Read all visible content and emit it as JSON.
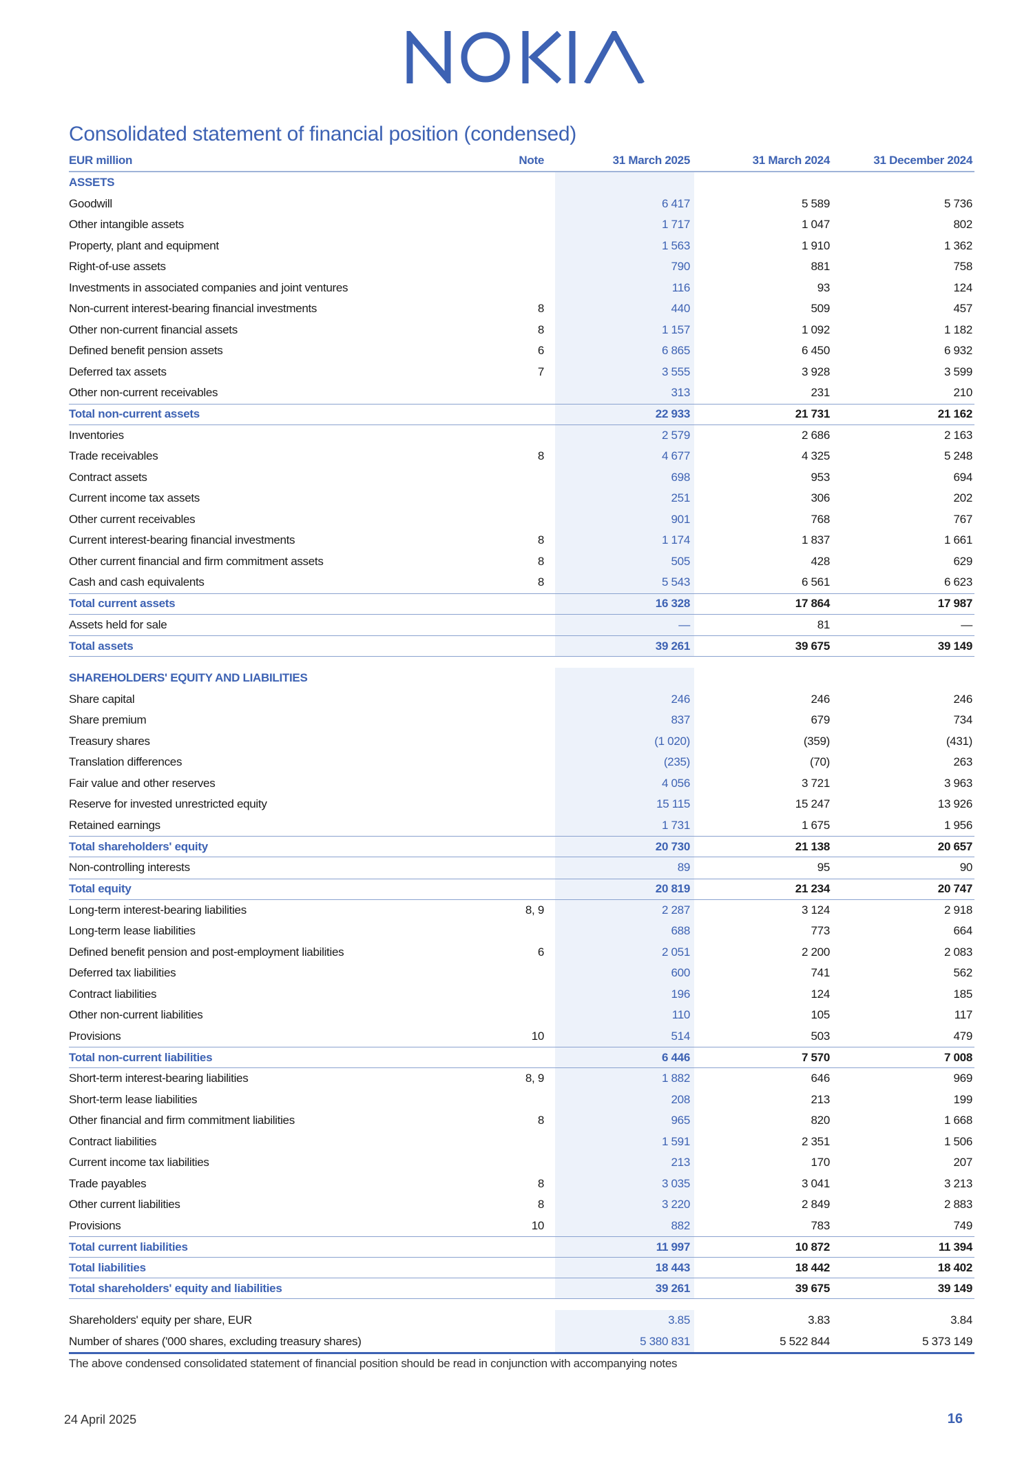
{
  "logo_text": "NOKIA",
  "brand_color": "#3d62b3",
  "title": "Consolidated statement of financial position (condensed)",
  "header": {
    "label": "EUR million",
    "note": "Note",
    "col1": "31 March 2025",
    "col2": "31 March 2024",
    "col3": "31 December 2024"
  },
  "rows": [
    {
      "type": "section",
      "label": "ASSETS",
      "note": "",
      "v1": "",
      "v2": "",
      "v3": ""
    },
    {
      "type": "item",
      "label": "Goodwill",
      "note": "",
      "v1": "6 417",
      "v2": "5 589",
      "v3": "5 736"
    },
    {
      "type": "item",
      "label": "Other intangible assets",
      "note": "",
      "v1": "1 717",
      "v2": "1 047",
      "v3": "802"
    },
    {
      "type": "item",
      "label": "Property, plant and equipment",
      "note": "",
      "v1": "1 563",
      "v2": "1 910",
      "v3": "1 362"
    },
    {
      "type": "item",
      "label": "Right-of-use assets",
      "note": "",
      "v1": "790",
      "v2": "881",
      "v3": "758"
    },
    {
      "type": "item",
      "label": "Investments in associated companies and joint ventures",
      "note": "",
      "v1": "116",
      "v2": "93",
      "v3": "124"
    },
    {
      "type": "item",
      "label": "Non-current interest-bearing financial investments",
      "note": "8",
      "v1": "440",
      "v2": "509",
      "v3": "457"
    },
    {
      "type": "item",
      "label": "Other non-current financial assets",
      "note": "8",
      "v1": "1 157",
      "v2": "1 092",
      "v3": "1 182"
    },
    {
      "type": "item",
      "label": "Defined benefit pension assets",
      "note": "6",
      "v1": "6 865",
      "v2": "6 450",
      "v3": "6 932"
    },
    {
      "type": "item",
      "label": "Deferred tax assets",
      "note": "7",
      "v1": "3 555",
      "v2": "3 928",
      "v3": "3 599"
    },
    {
      "type": "item",
      "label": "Other non-current receivables",
      "note": "",
      "v1": "313",
      "v2": "231",
      "v3": "210"
    },
    {
      "type": "total",
      "label": "Total non-current assets",
      "note": "",
      "v1": "22 933",
      "v2": "21 731",
      "v3": "21 162"
    },
    {
      "type": "item",
      "label": "Inventories",
      "note": "",
      "v1": "2 579",
      "v2": "2 686",
      "v3": "2 163"
    },
    {
      "type": "item",
      "label": "Trade receivables",
      "note": "8",
      "v1": "4 677",
      "v2": "4 325",
      "v3": "5 248"
    },
    {
      "type": "item",
      "label": "Contract assets",
      "note": "",
      "v1": "698",
      "v2": "953",
      "v3": "694"
    },
    {
      "type": "item",
      "label": "Current income tax assets",
      "note": "",
      "v1": "251",
      "v2": "306",
      "v3": "202"
    },
    {
      "type": "item",
      "label": "Other current receivables",
      "note": "",
      "v1": "901",
      "v2": "768",
      "v3": "767"
    },
    {
      "type": "item",
      "label": "Current interest-bearing financial investments",
      "note": "8",
      "v1": "1 174",
      "v2": "1 837",
      "v3": "1 661"
    },
    {
      "type": "item",
      "label": "Other current financial and firm commitment assets",
      "note": "8",
      "v1": "505",
      "v2": "428",
      "v3": "629"
    },
    {
      "type": "item",
      "label": "Cash and cash equivalents",
      "note": "8",
      "v1": "5 543",
      "v2": "6 561",
      "v3": "6 623"
    },
    {
      "type": "total",
      "label": "Total current assets",
      "note": "",
      "v1": "16 328",
      "v2": "17 864",
      "v3": "17 987"
    },
    {
      "type": "item",
      "label": "Assets held for sale",
      "note": "",
      "v1": "—",
      "v2": "81",
      "v3": "—"
    },
    {
      "type": "total",
      "label": "Total assets",
      "note": "",
      "v1": "39 261",
      "v2": "39 675",
      "v3": "39 149"
    },
    {
      "type": "spacer",
      "label": "",
      "note": "",
      "v1": "",
      "v2": "",
      "v3": ""
    },
    {
      "type": "section",
      "label": "SHAREHOLDERS' EQUITY AND LIABILITIES",
      "note": "",
      "v1": "",
      "v2": "",
      "v3": ""
    },
    {
      "type": "item",
      "label": "Share capital",
      "note": "",
      "v1": "246",
      "v2": "246",
      "v3": "246"
    },
    {
      "type": "item",
      "label": "Share premium",
      "note": "",
      "v1": "837",
      "v2": "679",
      "v3": "734"
    },
    {
      "type": "item",
      "label": "Treasury shares",
      "note": "",
      "v1": "(1 020)",
      "v2": "(359)",
      "v3": "(431)"
    },
    {
      "type": "item",
      "label": "Translation differences",
      "note": "",
      "v1": "(235)",
      "v2": "(70)",
      "v3": "263"
    },
    {
      "type": "item",
      "label": "Fair value and other reserves",
      "note": "",
      "v1": "4 056",
      "v2": "3 721",
      "v3": "3 963"
    },
    {
      "type": "item",
      "label": "Reserve for invested unrestricted equity",
      "note": "",
      "v1": "15 115",
      "v2": "15 247",
      "v3": "13 926"
    },
    {
      "type": "item",
      "label": "Retained earnings",
      "note": "",
      "v1": "1 731",
      "v2": "1 675",
      "v3": "1 956"
    },
    {
      "type": "total",
      "label": "Total shareholders' equity",
      "note": "",
      "v1": "20 730",
      "v2": "21 138",
      "v3": "20 657"
    },
    {
      "type": "item",
      "label": "Non-controlling interests",
      "note": "",
      "v1": "89",
      "v2": "95",
      "v3": "90"
    },
    {
      "type": "total",
      "label": "Total equity",
      "note": "",
      "v1": "20 819",
      "v2": "21 234",
      "v3": "20 747"
    },
    {
      "type": "item",
      "label": "Long-term interest-bearing liabilities",
      "note": "8, 9",
      "v1": "2 287",
      "v2": "3 124",
      "v3": "2 918"
    },
    {
      "type": "item",
      "label": "Long-term lease liabilities",
      "note": "",
      "v1": "688",
      "v2": "773",
      "v3": "664"
    },
    {
      "type": "item",
      "label": "Defined benefit pension and post-employment liabilities",
      "note": "6",
      "v1": "2 051",
      "v2": "2 200",
      "v3": "2 083"
    },
    {
      "type": "item",
      "label": "Deferred tax liabilities",
      "note": "",
      "v1": "600",
      "v2": "741",
      "v3": "562"
    },
    {
      "type": "item",
      "label": "Contract liabilities",
      "note": "",
      "v1": "196",
      "v2": "124",
      "v3": "185"
    },
    {
      "type": "item",
      "label": "Other non-current liabilities",
      "note": "",
      "v1": "110",
      "v2": "105",
      "v3": "117"
    },
    {
      "type": "item",
      "label": "Provisions",
      "note": "10",
      "v1": "514",
      "v2": "503",
      "v3": "479"
    },
    {
      "type": "total",
      "label": "Total non-current liabilities",
      "note": "",
      "v1": "6 446",
      "v2": "7 570",
      "v3": "7 008"
    },
    {
      "type": "item",
      "label": "Short-term interest-bearing liabilities",
      "note": "8, 9",
      "v1": "1 882",
      "v2": "646",
      "v3": "969"
    },
    {
      "type": "item",
      "label": "Short-term lease liabilities",
      "note": "",
      "v1": "208",
      "v2": "213",
      "v3": "199"
    },
    {
      "type": "item",
      "label": "Other financial and firm commitment liabilities",
      "note": "8",
      "v1": "965",
      "v2": "820",
      "v3": "1 668"
    },
    {
      "type": "item",
      "label": "Contract liabilities",
      "note": "",
      "v1": "1 591",
      "v2": "2 351",
      "v3": "1 506"
    },
    {
      "type": "item",
      "label": "Current income tax liabilities",
      "note": "",
      "v1": "213",
      "v2": "170",
      "v3": "207"
    },
    {
      "type": "item",
      "label": "Trade payables",
      "note": "8",
      "v1": "3 035",
      "v2": "3 041",
      "v3": "3 213"
    },
    {
      "type": "item",
      "label": "Other current liabilities",
      "note": "8",
      "v1": "3 220",
      "v2": "2 849",
      "v3": "2 883"
    },
    {
      "type": "item",
      "label": "Provisions",
      "note": "10",
      "v1": "882",
      "v2": "783",
      "v3": "749"
    },
    {
      "type": "total",
      "label": "Total current liabilities",
      "note": "",
      "v1": "11 997",
      "v2": "10 872",
      "v3": "11 394"
    },
    {
      "type": "total",
      "label": "Total liabilities",
      "note": "",
      "v1": "18 443",
      "v2": "18 442",
      "v3": "18 402"
    },
    {
      "type": "total",
      "label": "Total shareholders' equity and liabilities",
      "note": "",
      "v1": "39 261",
      "v2": "39 675",
      "v3": "39 149"
    },
    {
      "type": "spacer",
      "label": "",
      "note": "",
      "v1": "",
      "v2": "",
      "v3": ""
    },
    {
      "type": "item",
      "label": "Shareholders' equity per share, EUR",
      "note": "",
      "v1": "3.85",
      "v2": "3.83",
      "v3": "3.84"
    },
    {
      "type": "item lastline",
      "label": "Number of shares ('000 shares, excluding treasury shares)",
      "note": "",
      "v1": "5 380 831",
      "v2": "5 522 844",
      "v3": "5 373 149"
    }
  ],
  "footnote": "The above condensed consolidated statement of financial position should be read in conjunction with accompanying notes",
  "footer": {
    "date": "24 April 2025",
    "page": "16"
  }
}
